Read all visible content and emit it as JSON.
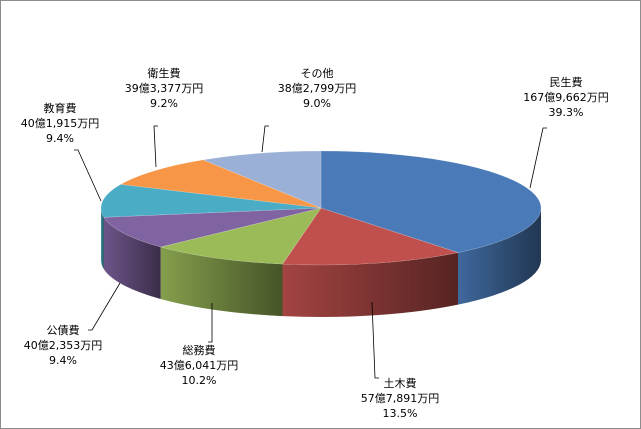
{
  "chart_data": {
    "type": "pie",
    "style": "3d-exploded-none",
    "legend": "none",
    "slices": [
      {
        "name": "民生費",
        "amount": "167億9,662万円",
        "percent": "39.3%",
        "value": 39.3,
        "color": "#4a7ab8"
      },
      {
        "name": "土木費",
        "amount": "57億7,891万円",
        "percent": "13.5%",
        "value": 13.5,
        "color": "#c0504d"
      },
      {
        "name": "総務費",
        "amount": "43億6,041万円",
        "percent": "10.2%",
        "value": 10.2,
        "color": "#9bbb59"
      },
      {
        "name": "公債費",
        "amount": "40億2,353万円",
        "percent": "9.4%",
        "value": 9.4,
        "color": "#8064a2"
      },
      {
        "name": "教育費",
        "amount": "40億1,915万円",
        "percent": "9.4%",
        "value": 9.4,
        "color": "#4bacc6"
      },
      {
        "name": "衛生費",
        "amount": "39億3,377万円",
        "percent": "9.2%",
        "value": 9.2,
        "color": "#f79646"
      },
      {
        "name": "その他",
        "amount": "38億2,799万円",
        "percent": "9.0%",
        "value": 9.0,
        "color": "#9bb0d6"
      }
    ]
  }
}
